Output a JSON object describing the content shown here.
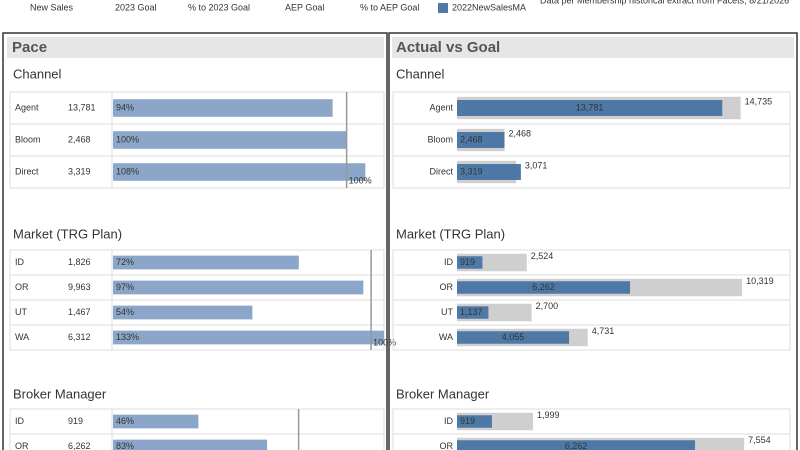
{
  "legend": {
    "items": [
      "New Sales",
      "2023 Goal",
      "% to 2023 Goal",
      "AEP Goal",
      "% to AEP Goal",
      "2022NewSalesMA"
    ],
    "swatch_color": "#4e79a7",
    "note": "Data per Membership historical extract from Facets, 8/21/2026"
  },
  "pace": {
    "title": "Pace",
    "color": "#8ba6c9",
    "ref_color": "#999999",
    "sections": [
      {
        "title": "Channel",
        "xlim": [
          0,
          116
        ],
        "ref": 100,
        "ref_label": "100%",
        "names": [
          "Agent",
          "Bloom",
          "Direct"
        ],
        "sales": [
          "13,781",
          "2,468",
          "3,319"
        ],
        "values": [
          94,
          100,
          108
        ],
        "value_labels": [
          "94%",
          "100%",
          "108%"
        ]
      },
      {
        "title": "Market (TRG Plan)",
        "xlim": [
          0,
          105
        ],
        "ref": 100,
        "ref_label": "100%",
        "names": [
          "ID",
          "OR",
          "UT",
          "WA"
        ],
        "sales": [
          "1,826",
          "9,963",
          "1,467",
          "6,312"
        ],
        "values": [
          72,
          97,
          54,
          133
        ],
        "value_labels": [
          "72%",
          "97%",
          "54%",
          "133%"
        ]
      },
      {
        "title": "Broker Manager",
        "xlim": [
          0,
          146
        ],
        "ref": 100,
        "names": [
          "ID",
          "OR"
        ],
        "sales": [
          "919",
          "6,262"
        ],
        "values": [
          46,
          83
        ],
        "value_labels": [
          "46%",
          "83%"
        ]
      }
    ]
  },
  "actual": {
    "title": "Actual vs Goal",
    "actual_color": "#4e79a7",
    "goal_color": "#cfcfcf",
    "sections": [
      {
        "title": "Channel",
        "xlim": [
          0,
          17300
        ],
        "names": [
          "Agent",
          "Bloom",
          "Direct"
        ],
        "actual": [
          13781,
          2468,
          3319
        ],
        "actual_labels": [
          "13,781",
          "2,468",
          "3,319"
        ],
        "goal": [
          14735,
          2468,
          3071
        ],
        "goal_labels": [
          "14,735",
          "2,468",
          "3,071"
        ]
      },
      {
        "title": "Market (TRG Plan)",
        "xlim": [
          0,
          12050
        ],
        "names": [
          "ID",
          "OR",
          "UT",
          "WA"
        ],
        "actual": [
          919,
          6262,
          1137,
          4055
        ],
        "actual_labels": [
          "919",
          "6,262",
          "1,137",
          "4,055"
        ],
        "goal": [
          2524,
          10319,
          2700,
          4731
        ],
        "goal_labels": [
          "2,524",
          "10,319",
          "2,700",
          "4,731"
        ]
      },
      {
        "title": "Broker Manager",
        "xlim": [
          0,
          8760
        ],
        "names": [
          "ID",
          "OR"
        ],
        "actual": [
          919,
          6262
        ],
        "actual_labels": [
          "919",
          "6,262"
        ],
        "goal": [
          1999,
          7554
        ],
        "goal_labels": [
          "1,999",
          "7,554"
        ]
      }
    ]
  }
}
